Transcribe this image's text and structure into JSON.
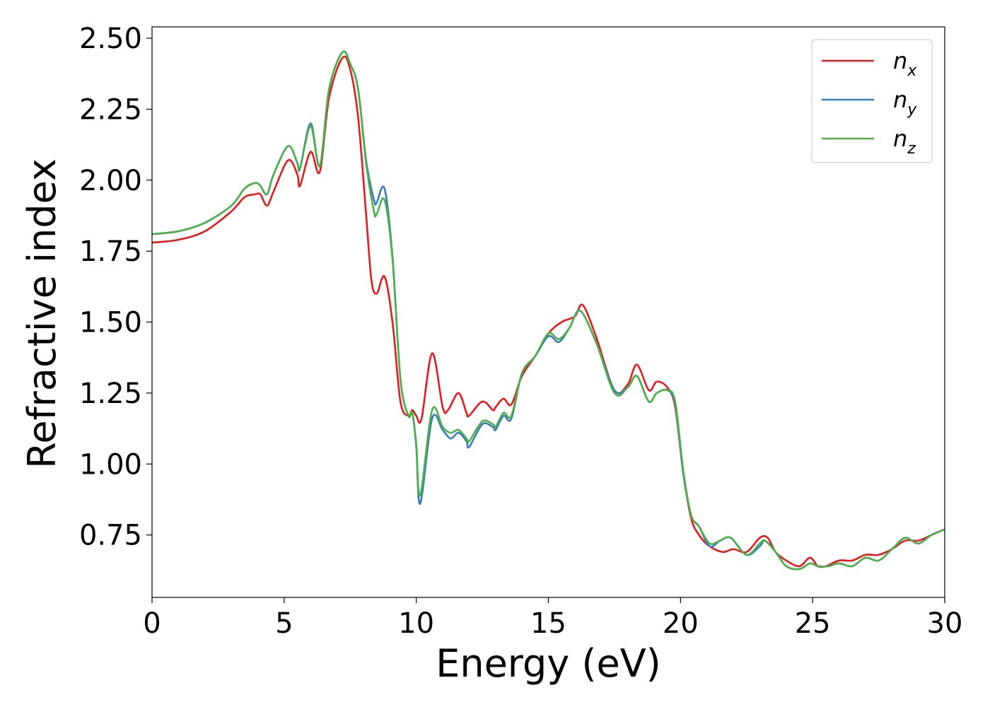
{
  "chart_data": {
    "type": "line",
    "title": "",
    "xlabel": "Energy (eV)",
    "ylabel": "Refractive index",
    "xlim": [
      0,
      30
    ],
    "ylim": [
      0.53,
      2.54
    ],
    "xticks": [
      0,
      5,
      10,
      15,
      20,
      25,
      30
    ],
    "xtick_labels": [
      "0",
      "5",
      "10",
      "15",
      "20",
      "25",
      "30"
    ],
    "yticks": [
      0.75,
      1.0,
      1.25,
      1.5,
      1.75,
      2.0,
      2.25,
      2.5
    ],
    "ytick_labels": [
      "0.75",
      "1.00",
      "1.25",
      "1.50",
      "1.75",
      "2.00",
      "2.25",
      "2.50"
    ],
    "grid": false,
    "legend_position": "top-right",
    "series": [
      {
        "name": "n_x",
        "label_main": "n",
        "label_sub": "x",
        "color": "#e41a1c",
        "x": [
          0,
          1,
          2,
          3,
          3.5,
          3.9,
          4.1,
          4.35,
          4.6,
          5.15,
          5.5,
          5.6,
          6.0,
          6.35,
          6.7,
          7.2,
          7.5,
          7.8,
          8.1,
          8.3,
          8.5,
          8.8,
          9.1,
          9.4,
          9.7,
          9.85,
          10.0,
          10.2,
          10.6,
          11.0,
          11.2,
          11.6,
          11.9,
          12.0,
          12.5,
          12.9,
          13.0,
          13.3,
          13.6,
          14.0,
          14.5,
          15.0,
          15.5,
          16.0,
          16.3,
          16.8,
          17.5,
          18.0,
          18.35,
          18.8,
          19.1,
          19.5,
          19.8,
          20.1,
          20.4,
          20.7,
          21.1,
          21.6,
          22.0,
          22.5,
          23.0,
          23.3,
          23.6,
          24.0,
          24.5,
          24.9,
          25.2,
          25.5,
          26.0,
          26.5,
          27.0,
          27.5,
          28.0,
          28.5,
          29.0,
          29.5,
          30
        ],
        "y": [
          1.78,
          1.79,
          1.82,
          1.89,
          1.94,
          1.95,
          1.95,
          1.91,
          1.96,
          2.07,
          2.02,
          1.98,
          2.1,
          2.03,
          2.29,
          2.43,
          2.39,
          2.22,
          1.88,
          1.65,
          1.6,
          1.66,
          1.5,
          1.22,
          1.17,
          1.19,
          1.17,
          1.16,
          1.39,
          1.2,
          1.19,
          1.25,
          1.18,
          1.17,
          1.22,
          1.19,
          1.2,
          1.23,
          1.21,
          1.31,
          1.38,
          1.46,
          1.5,
          1.52,
          1.56,
          1.45,
          1.26,
          1.28,
          1.35,
          1.26,
          1.29,
          1.27,
          1.2,
          0.97,
          0.81,
          0.75,
          0.71,
          0.69,
          0.7,
          0.69,
          0.74,
          0.74,
          0.69,
          0.66,
          0.64,
          0.67,
          0.64,
          0.64,
          0.66,
          0.66,
          0.68,
          0.68,
          0.7,
          0.73,
          0.73,
          0.75,
          0.77
        ]
      },
      {
        "name": "n_y",
        "label_main": "n",
        "label_sub": "y",
        "color": "#377eb8",
        "x": [
          0,
          1,
          2,
          3,
          3.5,
          3.9,
          4.1,
          4.35,
          4.6,
          5.15,
          5.5,
          5.6,
          6.0,
          6.35,
          6.7,
          7.2,
          7.5,
          7.8,
          8.1,
          8.4,
          8.5,
          8.8,
          9.1,
          9.4,
          9.7,
          9.85,
          10.0,
          10.15,
          10.6,
          11.0,
          11.3,
          11.6,
          11.9,
          12.0,
          12.5,
          12.9,
          13.0,
          13.3,
          13.6,
          14.0,
          14.5,
          15.0,
          15.4,
          15.8,
          16.2,
          16.8,
          17.5,
          18.0,
          18.35,
          18.8,
          19.1,
          19.5,
          19.8,
          20.1,
          20.4,
          20.7,
          21.1,
          21.5,
          21.9,
          22.5,
          23.0,
          23.2,
          23.6,
          24.0,
          24.5,
          24.9,
          25.2,
          25.6,
          26.0,
          26.5,
          27.0,
          27.5,
          28.0,
          28.5,
          29.0,
          29.5,
          30
        ],
        "y": [
          1.81,
          1.82,
          1.85,
          1.91,
          1.97,
          1.99,
          1.98,
          1.95,
          2.02,
          2.12,
          2.06,
          2.04,
          2.2,
          2.05,
          2.32,
          2.45,
          2.41,
          2.32,
          2.07,
          1.93,
          1.92,
          1.97,
          1.73,
          1.3,
          1.17,
          1.18,
          1.06,
          0.86,
          1.16,
          1.12,
          1.09,
          1.11,
          1.08,
          1.06,
          1.14,
          1.13,
          1.12,
          1.17,
          1.16,
          1.32,
          1.38,
          1.45,
          1.43,
          1.48,
          1.54,
          1.43,
          1.26,
          1.27,
          1.31,
          1.22,
          1.25,
          1.26,
          1.21,
          0.97,
          0.82,
          0.78,
          0.71,
          0.73,
          0.74,
          0.68,
          0.71,
          0.73,
          0.69,
          0.64,
          0.63,
          0.65,
          0.64,
          0.64,
          0.65,
          0.64,
          0.67,
          0.66,
          0.7,
          0.74,
          0.72,
          0.75,
          0.77
        ]
      },
      {
        "name": "n_z",
        "label_main": "n",
        "label_sub": "z",
        "color": "#4daf4a",
        "x": [
          0,
          1,
          2,
          3,
          3.5,
          3.9,
          4.1,
          4.35,
          4.6,
          5.15,
          5.5,
          5.6,
          6.0,
          6.35,
          6.7,
          7.2,
          7.5,
          7.8,
          8.1,
          8.4,
          8.5,
          8.8,
          9.1,
          9.4,
          9.7,
          9.85,
          10.0,
          10.15,
          10.6,
          11.0,
          11.3,
          11.6,
          11.9,
          12.0,
          12.5,
          12.9,
          13.0,
          13.3,
          13.6,
          14.0,
          14.5,
          15.0,
          15.4,
          15.8,
          16.2,
          16.8,
          17.5,
          18.0,
          18.35,
          18.8,
          19.1,
          19.5,
          19.8,
          20.1,
          20.4,
          20.7,
          21.1,
          21.5,
          21.9,
          22.5,
          23.0,
          23.2,
          23.6,
          24.0,
          24.5,
          24.9,
          25.2,
          25.6,
          26.0,
          26.5,
          27.0,
          27.5,
          28.0,
          28.5,
          29.0,
          29.5,
          30
        ],
        "y": [
          1.81,
          1.82,
          1.85,
          1.91,
          1.97,
          1.99,
          1.98,
          1.95,
          2.02,
          2.12,
          2.06,
          2.04,
          2.19,
          2.05,
          2.32,
          2.45,
          2.41,
          2.32,
          2.06,
          1.89,
          1.88,
          1.93,
          1.72,
          1.3,
          1.17,
          1.18,
          1.07,
          0.89,
          1.19,
          1.13,
          1.11,
          1.12,
          1.09,
          1.08,
          1.15,
          1.14,
          1.13,
          1.18,
          1.17,
          1.32,
          1.38,
          1.46,
          1.44,
          1.48,
          1.54,
          1.43,
          1.25,
          1.27,
          1.31,
          1.22,
          1.25,
          1.26,
          1.22,
          0.98,
          0.82,
          0.78,
          0.72,
          0.73,
          0.74,
          0.68,
          0.72,
          0.73,
          0.69,
          0.64,
          0.63,
          0.65,
          0.64,
          0.64,
          0.65,
          0.64,
          0.67,
          0.66,
          0.7,
          0.74,
          0.72,
          0.75,
          0.77
        ]
      }
    ]
  }
}
